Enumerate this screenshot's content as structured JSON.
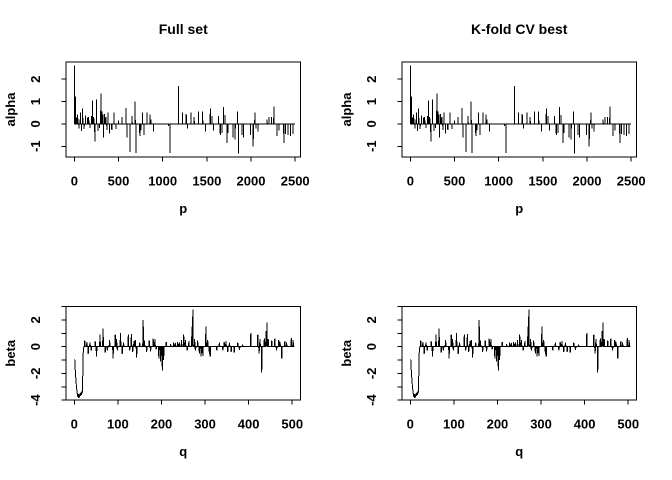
{
  "figure": {
    "background": "#ffffff",
    "line_color": "#000000",
    "columns": [
      {
        "title": "Full set"
      },
      {
        "title": "K-fold CV best"
      }
    ]
  },
  "panels": [
    {
      "row": 0,
      "col": 0,
      "chart": "alpha",
      "title": "Full set"
    },
    {
      "row": 0,
      "col": 1,
      "chart": "alpha",
      "title": "K-fold CV best"
    },
    {
      "row": 1,
      "col": 0,
      "chart": "beta",
      "title": ""
    },
    {
      "row": 1,
      "col": 1,
      "chart": "beta",
      "title": ""
    }
  ],
  "chart_data": [
    {
      "id": "alpha",
      "type": "line",
      "title": "",
      "xlabel": "p",
      "ylabel": "alpha",
      "n": 2500,
      "xlim": [
        -94,
        2560
      ],
      "ylim": [
        -1.48,
        2.77
      ],
      "xticks": [
        0,
        500,
        1000,
        1500,
        2000,
        2500
      ],
      "yticks_labeled": [
        -1,
        0,
        1,
        2
      ],
      "yticks_minor": [],
      "baseline": 0,
      "grid": false,
      "spikes": [
        [
          3,
          2.62
        ],
        [
          14,
          1.22
        ],
        [
          22,
          0.3
        ],
        [
          34,
          0.42
        ],
        [
          44,
          0.25
        ],
        [
          55,
          -0.2
        ],
        [
          68,
          0.52
        ],
        [
          82,
          -0.32
        ],
        [
          95,
          0.7
        ],
        [
          112,
          -0.22
        ],
        [
          128,
          0.38
        ],
        [
          148,
          0.28
        ],
        [
          163,
          0.3
        ],
        [
          178,
          -0.18
        ],
        [
          193,
          0.35
        ],
        [
          207,
          1.05
        ],
        [
          220,
          0.3
        ],
        [
          232,
          -0.78
        ],
        [
          252,
          1.1
        ],
        [
          268,
          -0.32
        ],
        [
          285,
          -0.18
        ],
        [
          300,
          1.35
        ],
        [
          313,
          0.55
        ],
        [
          322,
          0.42
        ],
        [
          331,
          -0.6
        ],
        [
          344,
          0.45
        ],
        [
          356,
          0.3
        ],
        [
          368,
          -0.28
        ],
        [
          383,
          0.52
        ],
        [
          398,
          -0.42
        ],
        [
          424,
          -0.28
        ],
        [
          448,
          0.5
        ],
        [
          470,
          -0.22
        ],
        [
          500,
          0.15
        ],
        [
          540,
          0.3
        ],
        [
          585,
          0.72
        ],
        [
          598,
          -0.6
        ],
        [
          629,
          -1.26
        ],
        [
          655,
          0.35
        ],
        [
          689,
          1.0
        ],
        [
          700,
          -1.31
        ],
        [
          741,
          -0.55
        ],
        [
          752,
          -0.3
        ],
        [
          771,
          0.5
        ],
        [
          790,
          -0.5
        ],
        [
          821,
          0.5
        ],
        [
          858,
          0.42
        ],
        [
          870,
          0.2
        ],
        [
          896,
          -0.35
        ],
        [
          1066,
          -0.1
        ],
        [
          1085,
          -1.31
        ],
        [
          1180,
          1.7
        ],
        [
          1225,
          0.5
        ],
        [
          1267,
          0.45
        ],
        [
          1281,
          -0.2
        ],
        [
          1320,
          0.5
        ],
        [
          1357,
          0.3
        ],
        [
          1406,
          0.55
        ],
        [
          1453,
          0.55
        ],
        [
          1483,
          -0.35
        ],
        [
          1539,
          0.7
        ],
        [
          1558,
          0.35
        ],
        [
          1577,
          -0.3
        ],
        [
          1633,
          0.35
        ],
        [
          1652,
          -0.5
        ],
        [
          1671,
          -0.4
        ],
        [
          1690,
          0.75
        ],
        [
          1705,
          0.4
        ],
        [
          1727,
          -0.85
        ],
        [
          1740,
          -0.4
        ],
        [
          1795,
          -0.6
        ],
        [
          1821,
          -0.7
        ],
        [
          1848,
          0.55
        ],
        [
          1859,
          -1.33
        ],
        [
          1897,
          -0.5
        ],
        [
          1916,
          -0.6
        ],
        [
          1995,
          -0.5
        ],
        [
          2025,
          -1.0
        ],
        [
          2043,
          0.5
        ],
        [
          2058,
          -0.2
        ],
        [
          2081,
          -0.35
        ],
        [
          2183,
          0.2
        ],
        [
          2202,
          0.3
        ],
        [
          2232,
          0.3
        ],
        [
          2258,
          0.78
        ],
        [
          2295,
          -0.55
        ],
        [
          2315,
          -0.3
        ],
        [
          2371,
          -0.85
        ],
        [
          2390,
          -0.45
        ],
        [
          2420,
          -0.5
        ],
        [
          2447,
          -0.55
        ],
        [
          2476,
          -0.45
        ]
      ]
    },
    {
      "id": "beta",
      "type": "line",
      "title": "",
      "xlabel": "q",
      "ylabel": "beta",
      "n": 505,
      "xlim": [
        -19,
        519
      ],
      "ylim": [
        -3.99,
        3.0
      ],
      "xticks": [
        0,
        100,
        200,
        300,
        400,
        500
      ],
      "yticks_labeled": [
        -4,
        -2,
        0,
        2
      ],
      "yticks_minor": [
        -3,
        -1,
        1,
        3
      ],
      "baseline": 0,
      "grid": false,
      "spikes": [
        [
          1,
          -0.95
        ],
        [
          2,
          -1.6
        ],
        [
          3,
          -2.15
        ],
        [
          4,
          -2.6
        ],
        [
          5,
          -3.0
        ],
        [
          6,
          -3.3
        ],
        [
          7,
          -3.55
        ],
        [
          8,
          -3.75
        ],
        [
          9,
          -3.5
        ],
        [
          10,
          -3.85
        ],
        [
          11,
          -3.6
        ],
        [
          12,
          -3.8
        ],
        [
          13,
          -3.5
        ],
        [
          14,
          -3.7
        ],
        [
          15,
          -3.45
        ],
        [
          16,
          -3.6
        ],
        [
          17,
          -3.35
        ],
        [
          18,
          -3.5
        ],
        [
          19,
          -3.3
        ],
        [
          20,
          -0.8
        ],
        [
          21,
          -0.2
        ],
        [
          24,
          0.45
        ],
        [
          29,
          0.35
        ],
        [
          32,
          -0.55
        ],
        [
          36,
          0.3
        ],
        [
          39,
          -0.3
        ],
        [
          48,
          0.4
        ],
        [
          51,
          -0.75
        ],
        [
          59,
          0.9
        ],
        [
          66,
          1.35
        ],
        [
          71,
          -0.45
        ],
        [
          76,
          -0.3
        ],
        [
          81,
          0.5
        ],
        [
          89,
          -0.9
        ],
        [
          94,
          0.9
        ],
        [
          97,
          0.55
        ],
        [
          99,
          -0.3
        ],
        [
          106,
          1.0
        ],
        [
          110,
          -0.55
        ],
        [
          113,
          0.3
        ],
        [
          124,
          0.9
        ],
        [
          127,
          -0.3
        ],
        [
          131,
          0.95
        ],
        [
          134,
          -0.4
        ],
        [
          137,
          0.4
        ],
        [
          140,
          0.5
        ],
        [
          143,
          -0.8
        ],
        [
          150,
          0.3
        ],
        [
          158,
          2.0
        ],
        [
          161,
          0.45
        ],
        [
          166,
          -0.4
        ],
        [
          172,
          0.45
        ],
        [
          175,
          -0.35
        ],
        [
          181,
          0.6
        ],
        [
          185,
          0.55
        ],
        [
          188,
          -0.2
        ],
        [
          194,
          -0.88
        ],
        [
          198,
          -1.1
        ],
        [
          202,
          -1.77
        ],
        [
          205,
          -1.0
        ],
        [
          211,
          0.35
        ],
        [
          221,
          0.2
        ],
        [
          228,
          0.3
        ],
        [
          232,
          0.25
        ],
        [
          237,
          0.35
        ],
        [
          241,
          0.3
        ],
        [
          246,
          0.5
        ],
        [
          251,
          0.9
        ],
        [
          255,
          0.5
        ],
        [
          259,
          -0.3
        ],
        [
          263,
          0.4
        ],
        [
          270,
          1.5
        ],
        [
          272,
          2.78
        ],
        [
          276,
          0.55
        ],
        [
          278,
          -0.3
        ],
        [
          283,
          0.45
        ],
        [
          287,
          -0.5
        ],
        [
          291,
          -0.75
        ],
        [
          295,
          -0.7
        ],
        [
          302,
          1.5
        ],
        [
          306,
          0.5
        ],
        [
          310,
          -0.55
        ],
        [
          312,
          -0.75
        ],
        [
          327,
          -0.3
        ],
        [
          333,
          0.3
        ],
        [
          341,
          -0.3
        ],
        [
          344,
          0.35
        ],
        [
          348,
          0.4
        ],
        [
          352,
          -0.4
        ],
        [
          356,
          0.3
        ],
        [
          360,
          -0.4
        ],
        [
          367,
          -0.45
        ],
        [
          375,
          0.3
        ],
        [
          379,
          -0.25
        ],
        [
          386,
          0.15
        ],
        [
          405,
          1.0
        ],
        [
          421,
          0.9
        ],
        [
          424,
          -0.5
        ],
        [
          426,
          0.55
        ],
        [
          430,
          -1.95
        ],
        [
          436,
          0.6
        ],
        [
          440,
          1.15
        ],
        [
          442,
          1.8
        ],
        [
          445,
          0.55
        ],
        [
          453,
          0.45
        ],
        [
          460,
          0.6
        ],
        [
          464,
          -0.3
        ],
        [
          469,
          0.5
        ],
        [
          472,
          0.35
        ],
        [
          476,
          -0.9
        ],
        [
          483,
          0.4
        ],
        [
          487,
          0.3
        ],
        [
          498,
          0.65
        ],
        [
          502,
          0.5
        ]
      ]
    }
  ]
}
